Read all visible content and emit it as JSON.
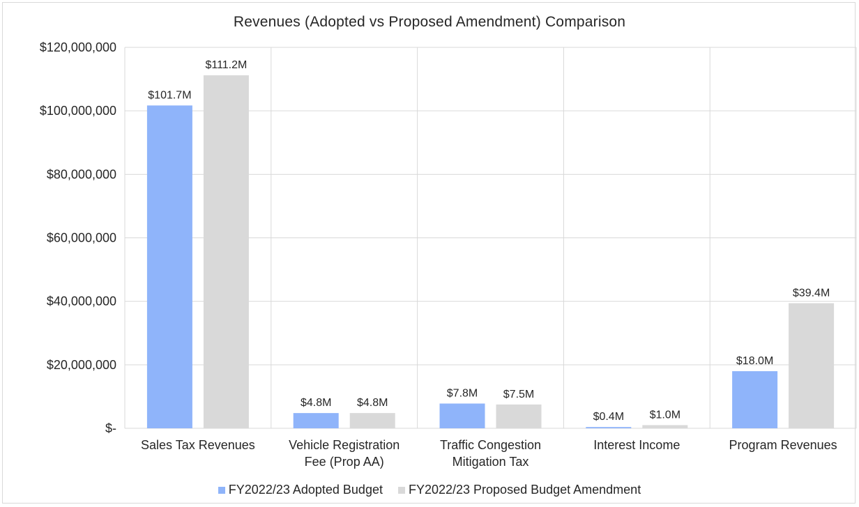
{
  "chart_data": {
    "type": "bar",
    "title": "Revenues (Adopted vs Proposed Amendment) Comparison",
    "categories": [
      [
        "Sales Tax Revenues"
      ],
      [
        "Vehicle Registration",
        "Fee (Prop AA)"
      ],
      [
        "Traffic Congestion",
        "Mitigation Tax"
      ],
      [
        "Interest Income"
      ],
      [
        "Program Revenues"
      ]
    ],
    "series": [
      {
        "name": "FY2022/23 Adopted Budget",
        "color": "#8fb4fa",
        "values": [
          101700000,
          4800000,
          7800000,
          400000,
          18000000
        ],
        "labels": [
          "$101.7M",
          "$4.8M",
          "$7.8M",
          "$0.4M",
          "$18.0M"
        ]
      },
      {
        "name": "FY2022/23 Proposed Budget Amendment",
        "color": "#d9d9d9",
        "values": [
          111200000,
          4800000,
          7500000,
          1000000,
          39400000
        ],
        "labels": [
          "$111.2M",
          "$4.8M",
          "$7.5M",
          "$1.0M",
          "$39.4M"
        ]
      }
    ],
    "y_ticks": [
      {
        "value": 0,
        "label": "$-"
      },
      {
        "value": 20000000,
        "label": "$20,000,000"
      },
      {
        "value": 40000000,
        "label": "$40,000,000"
      },
      {
        "value": 60000000,
        "label": "$60,000,000"
      },
      {
        "value": 80000000,
        "label": "$80,000,000"
      },
      {
        "value": 100000000,
        "label": "$100,000,000"
      },
      {
        "value": 120000000,
        "label": "$120,000,000"
      }
    ],
    "ylim": [
      0,
      120000000
    ],
    "grid": true,
    "legend_position": "bottom",
    "gridline_color": "#d9d9d9"
  }
}
